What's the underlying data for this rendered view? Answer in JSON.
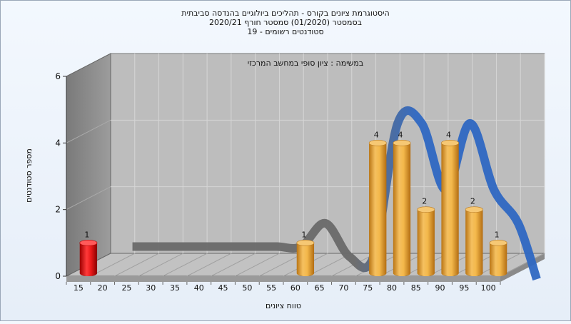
{
  "chart_data": {
    "type": "bar",
    "title_lines": [
      "היסטוגרמת ציונים בקורס - תהליכים ביולוגיים בהנדסה סביבתית",
      "בסמסטר  (01/2020)  סמסטר חורף  2020/21",
      "סטודנטים רשומים - 19"
    ],
    "subtitle": "במשימה : ציון סופי במחשב המרכזי",
    "xlabel": "טווח ציונים",
    "ylabel": "מספר סטודנטים",
    "ylim": [
      0,
      6
    ],
    "y_ticks": [
      "0",
      "2",
      "4",
      "6"
    ],
    "categories": [
      "15",
      "20",
      "25",
      "30",
      "35",
      "40",
      "45",
      "50",
      "55",
      "60",
      "65",
      "70",
      "75",
      "80",
      "85",
      "90",
      "95",
      "100"
    ],
    "values": [
      1,
      0,
      0,
      0,
      0,
      0,
      0,
      0,
      0,
      1,
      0,
      0,
      4,
      4,
      2,
      4,
      2,
      1
    ],
    "value_labels": [
      "1",
      "",
      "",
      "",
      "",
      "",
      "",
      "",
      "",
      "1",
      "",
      "",
      "4",
      "4",
      "2",
      "4",
      "2",
      "1"
    ],
    "colors": {
      "failing_bar": "#e01515",
      "passing_bar": "#f0ad3a",
      "curve_low": "#6a6a6a",
      "curve_high": "#2f68c2",
      "wall": "#8f8f8f",
      "floor": "#c2c2c2",
      "back_wall": "#bdbdbd"
    },
    "grid": true,
    "legend": "none"
  }
}
